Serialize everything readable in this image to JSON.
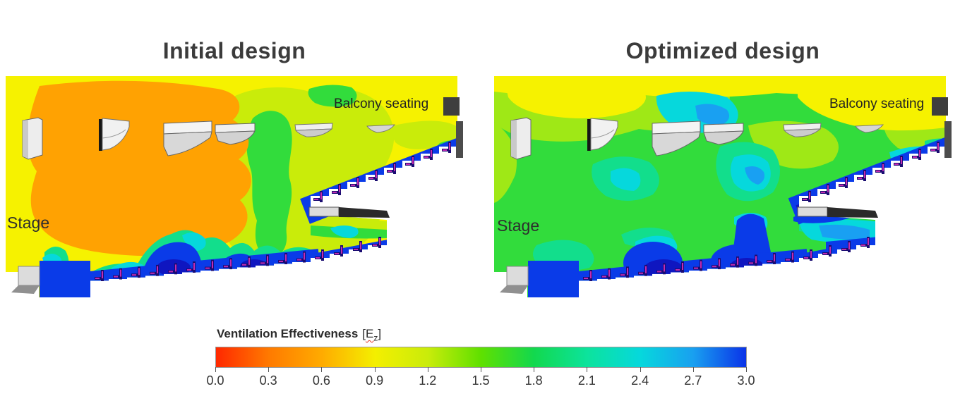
{
  "page": {
    "background": "#FFFFFF"
  },
  "panels": [
    {
      "title": "Initial design",
      "stage_label": "Stage",
      "balcony_label": "Balcony seating"
    },
    {
      "title": "Optimized design",
      "stage_label": "Stage",
      "balcony_label": "Balcony seating"
    }
  ],
  "colorbar": {
    "label_bold": "Ventilation Effectiveness",
    "label_open": "[",
    "label_symbol": "E",
    "label_sub": "z",
    "label_close": "]",
    "ticks": [
      "0.0",
      "0.3",
      "0.6",
      "0.9",
      "1.2",
      "1.5",
      "1.8",
      "2.1",
      "2.4",
      "2.7",
      "3.0"
    ],
    "gradient_stops": [
      "#FF2800",
      "#FF7A00",
      "#FFAB00",
      "#F4EF00",
      "#C9EC0A",
      "#5FE000",
      "#12D84E",
      "#0CE39C",
      "#06D8DC",
      "#19A0F0",
      "#0A33E8"
    ]
  },
  "palette": {
    "yellow": "#F6F200",
    "orange": "#FFA202",
    "yellowGreen": "#C9EC0A",
    "limeGreen": "#9FE816",
    "green": "#32DC3C",
    "springGreen": "#12DE8C",
    "cyan": "#06D8DC",
    "skyBlue": "#19A0F2",
    "blue": "#0A3BE8",
    "darkBlue": "#0F16C0",
    "seatNavy": "#1A0C72",
    "seatMagenta": "#C32BB4",
    "structureGray": "#3E3E3E",
    "wallGray": "#4C4C4C",
    "panelLight": "#EDEDED",
    "panelShade": "#C9C9C9",
    "stageGray": "#DCDCDC",
    "titleText": "#3B3B3B",
    "squiggleRed": "#E03020"
  },
  "chart_data": {
    "type": "heatmap",
    "variable": "Ventilation Effectiveness [Ez]",
    "colorbar": {
      "min": 0.0,
      "max": 3.0,
      "tick_interval": 0.3,
      "ticks": [
        0.0,
        0.3,
        0.6,
        0.9,
        1.2,
        1.5,
        1.8,
        2.1,
        2.4,
        2.7,
        3.0
      ],
      "orientation": "horizontal",
      "colors_low_to_high": [
        "red",
        "orange",
        "yellow",
        "yellow-green",
        "green",
        "spring-green",
        "cyan",
        "light-blue",
        "blue"
      ]
    },
    "panels": [
      {
        "title": "Initial design",
        "annotations": [
          "Stage",
          "Balcony seating"
        ],
        "regions": [
          {
            "zone": "stage and front-stalls air volume",
            "ez_approx": 0.75
          },
          {
            "zone": "upper hall / ceiling band",
            "ez_approx": 0.95
          },
          {
            "zone": "mid-hall rising plume",
            "ez_approx": 1.6
          },
          {
            "zone": "air above balcony seating",
            "ez_approx": 0.95
          },
          {
            "zone": "occupied zone above stalls seating",
            "ez_approx": 2.9
          },
          {
            "zone": "occupied zone above balcony seating",
            "ez_approx": 2.9
          },
          {
            "zone": "orchestra pit",
            "ez_approx": 3.0
          }
        ]
      },
      {
        "title": "Optimized design",
        "annotations": [
          "Stage",
          "Balcony seating"
        ],
        "regions": [
          {
            "zone": "stage and main hall air volume",
            "ez_approx": 1.5
          },
          {
            "zone": "ceiling band",
            "ez_approx": 0.95
          },
          {
            "zone": "ceiling recirculation pockets",
            "ez_approx": 2.2
          },
          {
            "zone": "air above balcony seating",
            "ez_approx": 1.0
          },
          {
            "zone": "occupied zone above stalls seating",
            "ez_approx": 2.9
          },
          {
            "zone": "occupied zone above balcony seating",
            "ez_approx": 3.0
          },
          {
            "zone": "under-balcony region",
            "ez_approx": 2.4
          }
        ]
      }
    ]
  }
}
